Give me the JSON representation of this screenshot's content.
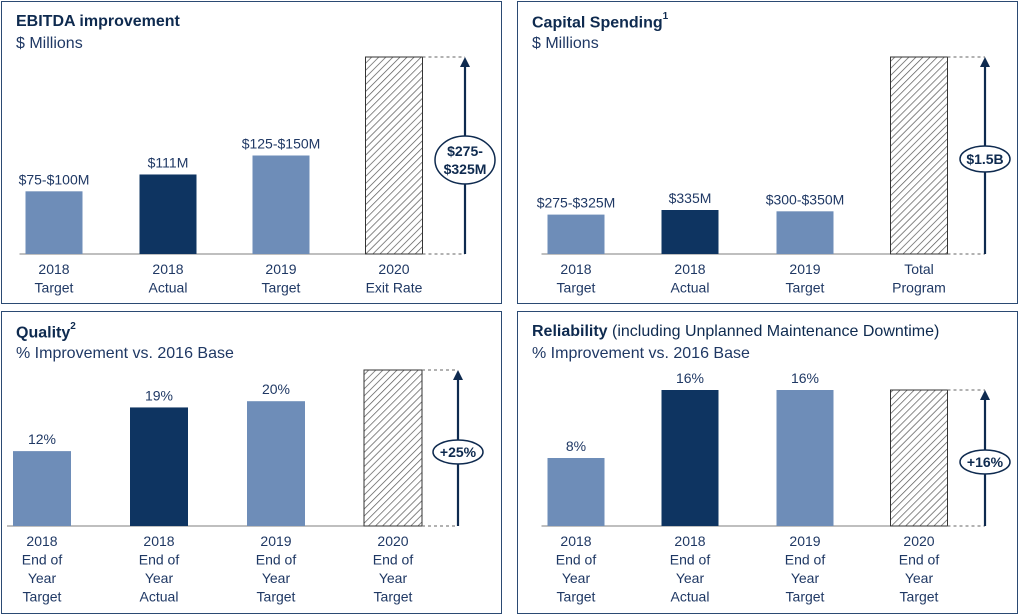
{
  "colors": {
    "target": "#6e8db8",
    "actual": "#0e3461",
    "border": "#2b4a73",
    "text": "#1f3864"
  },
  "panels": [
    {
      "title": "EBITDA improvement",
      "title_sup": "",
      "title_rest": "",
      "subtitle": "$ Millions"
    },
    {
      "title": "Capital Spending",
      "title_sup": "1",
      "title_rest": "",
      "subtitle": "$ Millions"
    },
    {
      "title": "Quality",
      "title_sup": "2",
      "title_rest": "",
      "subtitle": "% Improvement vs. 2016 Base"
    },
    {
      "title": "Reliability",
      "title_sup": "",
      "title_rest": " (including Unplanned Maintenance Downtime)",
      "subtitle": "% Improvement vs. 2016 Base"
    }
  ],
  "chart_data": [
    {
      "type": "bar",
      "title": "EBITDA improvement",
      "ylabel": "$ Millions",
      "ylim": [
        0,
        275
      ],
      "categories": [
        [
          "2018",
          "Target"
        ],
        [
          "2018",
          "Actual"
        ],
        [
          "2019",
          "Target"
        ],
        [
          "2020",
          "Exit  Rate"
        ]
      ],
      "values": [
        87.5,
        111,
        137.5,
        275
      ],
      "styles": [
        "target",
        "actual",
        "target",
        "hatched"
      ],
      "value_labels": [
        "$75-$100M",
        "$111M",
        "$125-$150M",
        ""
      ],
      "annotation": [
        "$275-",
        "$325M"
      ]
    },
    {
      "type": "bar",
      "title": "Capital Spending",
      "ylabel": "$ Millions",
      "ylim": [
        0,
        1500
      ],
      "categories": [
        [
          "2018",
          "Target"
        ],
        [
          "2018",
          "Actual"
        ],
        [
          "2019",
          "Target"
        ],
        [
          "Total",
          "Program"
        ]
      ],
      "values": [
        300,
        335,
        325,
        1500
      ],
      "styles": [
        "target",
        "actual",
        "target",
        "hatched"
      ],
      "value_labels": [
        "$275-$325M",
        "$335M",
        "$300-$350M",
        ""
      ],
      "annotation": [
        "$1.5B"
      ]
    },
    {
      "type": "bar",
      "title": "Quality",
      "ylabel": "% Improvement vs. 2016 Base",
      "ylim": [
        0,
        25
      ],
      "categories": [
        [
          "2018",
          "End of",
          "Year",
          "Target"
        ],
        [
          "2018",
          "End of",
          "Year",
          "Actual"
        ],
        [
          "2019",
          "End of",
          "Year",
          "Target"
        ],
        [
          "2020",
          "End of",
          "Year",
          "Target"
        ]
      ],
      "values": [
        12,
        19,
        20,
        25
      ],
      "styles": [
        "target",
        "actual",
        "target",
        "hatched"
      ],
      "value_labels": [
        "12%",
        "19%",
        "20%",
        ""
      ],
      "annotation": [
        "+25%"
      ]
    },
    {
      "type": "bar",
      "title": "Reliability",
      "ylabel": "% Improvement vs. 2016 Base",
      "ylim": [
        0,
        16
      ],
      "categories": [
        [
          "2018",
          "End of",
          "Year",
          "Target"
        ],
        [
          "2018",
          "End of",
          "Year",
          "Actual"
        ],
        [
          "2019",
          "End of",
          "Year",
          "Target"
        ],
        [
          "2020",
          "End of",
          "Year",
          "Target"
        ]
      ],
      "values": [
        8,
        16,
        16,
        16
      ],
      "styles": [
        "target",
        "actual",
        "target",
        "hatched"
      ],
      "value_labels": [
        "8%",
        "16%",
        "16%",
        ""
      ],
      "annotation": [
        "+16%"
      ]
    }
  ]
}
